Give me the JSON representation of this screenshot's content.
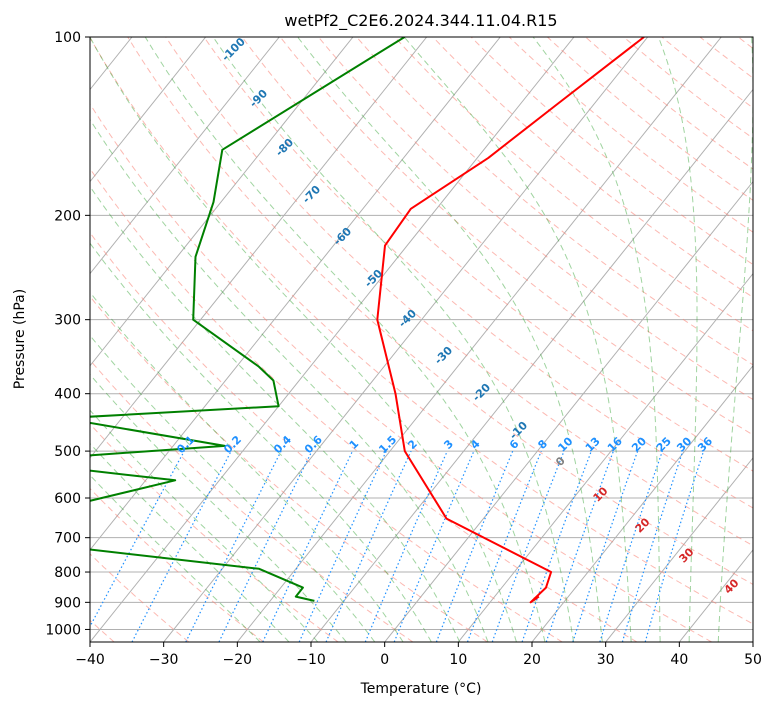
{
  "chart_data": {
    "type": "line",
    "title": "wetPf2_C2E6.2024.344.11.04.R15",
    "xlabel": "Temperature (°C)",
    "ylabel": "Pressure (hPa)",
    "xlim": [
      -40,
      50
    ],
    "ylim": [
      1050,
      100
    ],
    "y_scale": "log",
    "x_ticks": [
      "−40",
      "−30",
      "−20",
      "−10",
      "0",
      "10",
      "20",
      "30",
      "40",
      "50"
    ],
    "y_ticks": [
      "100",
      "200",
      "300",
      "400",
      "500",
      "600",
      "700",
      "800",
      "900",
      "1000"
    ],
    "grid": true,
    "series": [
      {
        "color": "#ff0000",
        "points": [
          [
            -30.5,
            100
          ],
          [
            -35,
            130
          ],
          [
            -38.5,
            160
          ],
          [
            -43.5,
            195
          ],
          [
            -43,
            225
          ],
          [
            -36,
            300
          ],
          [
            -25.5,
            400
          ],
          [
            -18,
            500
          ],
          [
            -5,
            650
          ],
          [
            15,
            800
          ],
          [
            16,
            850
          ],
          [
            15.5,
            900
          ],
          [
            16,
            880
          ]
        ]
      },
      {
        "color": "#008000",
        "points": [
          [
            -63,
            100
          ],
          [
            -75.5,
            155
          ],
          [
            -71,
            190
          ],
          [
            -67.5,
            235
          ],
          [
            -61,
            300
          ],
          [
            -47,
            360
          ],
          [
            -43.5,
            380
          ],
          [
            -40,
            420
          ],
          [
            -68,
            440
          ],
          [
            -43,
            490
          ],
          [
            -71,
            520
          ],
          [
            -46,
            560
          ],
          [
            -56,
            610
          ],
          [
            -77,
            680
          ],
          [
            -56,
            720
          ],
          [
            -25,
            790
          ],
          [
            -17,
            850
          ],
          [
            -17,
            880
          ],
          [
            -14,
            895
          ]
        ]
      }
    ],
    "mixing_ratio_labels": [
      "0.1",
      "0.2",
      "0.4",
      "0.6",
      "1",
      "1.5",
      "2",
      "3",
      "4",
      "6",
      "8",
      "10",
      "13",
      "16",
      "20",
      "25",
      "30",
      "36"
    ],
    "dry_adiabat_labels": [
      "-100",
      "-90",
      "-80",
      "-70",
      "-60",
      "-50",
      "-40",
      "-30",
      "-20",
      "-10"
    ],
    "moist_adiabat_labels": [
      "0",
      "10",
      "20",
      "30",
      "40"
    ],
    "colors": {
      "temperature": "#ff0000",
      "dewpoint": "#008000",
      "isotherm": "#808080",
      "dry_adiabat": "#fa8072",
      "moist_adiabat": "#2ca02c",
      "mixing_ratio": "#1e90ff",
      "dry_label": "#1f77b4",
      "moist_label": "#d62728"
    }
  }
}
